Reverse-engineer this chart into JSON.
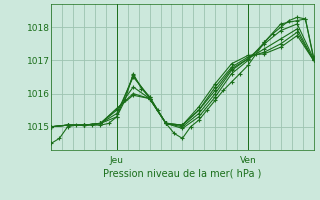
{
  "bg_color": "#cce8dc",
  "grid_color": "#9dc4b0",
  "line_color": "#1a6e1a",
  "xlabel": "Pression niveau de la mer( hPa )",
  "yticks": [
    1015,
    1016,
    1017,
    1018
  ],
  "ylim": [
    1014.3,
    1018.7
  ],
  "xlim": [
    0,
    96
  ],
  "jeu_x": 24,
  "ven_x": 72,
  "series": [
    [
      0,
      1014.5,
      3,
      1014.65,
      6,
      1015.0,
      9,
      1015.05,
      12,
      1015.05,
      15,
      1015.05,
      18,
      1015.05,
      21,
      1015.1,
      24,
      1015.3,
      27,
      1015.8,
      30,
      1016.6,
      33,
      1016.15,
      36,
      1015.9,
      39,
      1015.5,
      42,
      1015.1,
      45,
      1014.8,
      48,
      1014.65,
      51,
      1015.0,
      54,
      1015.2,
      57,
      1015.5,
      60,
      1015.8,
      63,
      1016.1,
      66,
      1016.35,
      69,
      1016.6,
      72,
      1016.85,
      75,
      1017.2,
      78,
      1017.55,
      81,
      1017.8,
      84,
      1018.0,
      87,
      1018.2,
      90,
      1018.3,
      93,
      1018.25,
      96,
      1017.05
    ],
    [
      0,
      1015.0,
      6,
      1015.05,
      12,
      1015.05,
      18,
      1015.1,
      24,
      1015.3,
      30,
      1016.55,
      36,
      1015.85,
      42,
      1015.1,
      48,
      1014.95,
      54,
      1015.3,
      60,
      1015.9,
      66,
      1016.6,
      72,
      1017.0,
      78,
      1017.55,
      84,
      1018.1,
      90,
      1018.2,
      93,
      1018.25,
      96,
      1017.1
    ],
    [
      0,
      1015.0,
      6,
      1015.05,
      12,
      1015.05,
      18,
      1015.1,
      24,
      1015.4,
      30,
      1016.5,
      36,
      1015.9,
      42,
      1015.1,
      48,
      1015.0,
      54,
      1015.4,
      60,
      1016.0,
      66,
      1016.7,
      72,
      1017.05,
      78,
      1017.5,
      84,
      1017.9,
      90,
      1018.1,
      96,
      1017.05
    ],
    [
      0,
      1015.0,
      6,
      1015.05,
      12,
      1015.05,
      18,
      1015.1,
      24,
      1015.5,
      30,
      1016.2,
      36,
      1015.85,
      42,
      1015.1,
      48,
      1015.05,
      54,
      1015.5,
      60,
      1016.1,
      66,
      1016.75,
      72,
      1017.05,
      78,
      1017.35,
      84,
      1017.65,
      90,
      1017.95,
      96,
      1017.0
    ],
    [
      0,
      1015.0,
      6,
      1015.05,
      12,
      1015.05,
      18,
      1015.1,
      24,
      1015.55,
      30,
      1016.0,
      36,
      1015.85,
      42,
      1015.1,
      48,
      1015.05,
      54,
      1015.5,
      60,
      1016.2,
      66,
      1016.8,
      72,
      1017.1,
      78,
      1017.25,
      84,
      1017.5,
      90,
      1017.85,
      96,
      1017.0
    ],
    [
      0,
      1015.0,
      6,
      1015.05,
      12,
      1015.05,
      18,
      1015.1,
      24,
      1015.55,
      30,
      1015.95,
      36,
      1015.85,
      42,
      1015.1,
      48,
      1015.05,
      54,
      1015.6,
      60,
      1016.3,
      66,
      1016.9,
      72,
      1017.15,
      78,
      1017.2,
      84,
      1017.4,
      90,
      1017.75,
      96,
      1017.0
    ]
  ]
}
